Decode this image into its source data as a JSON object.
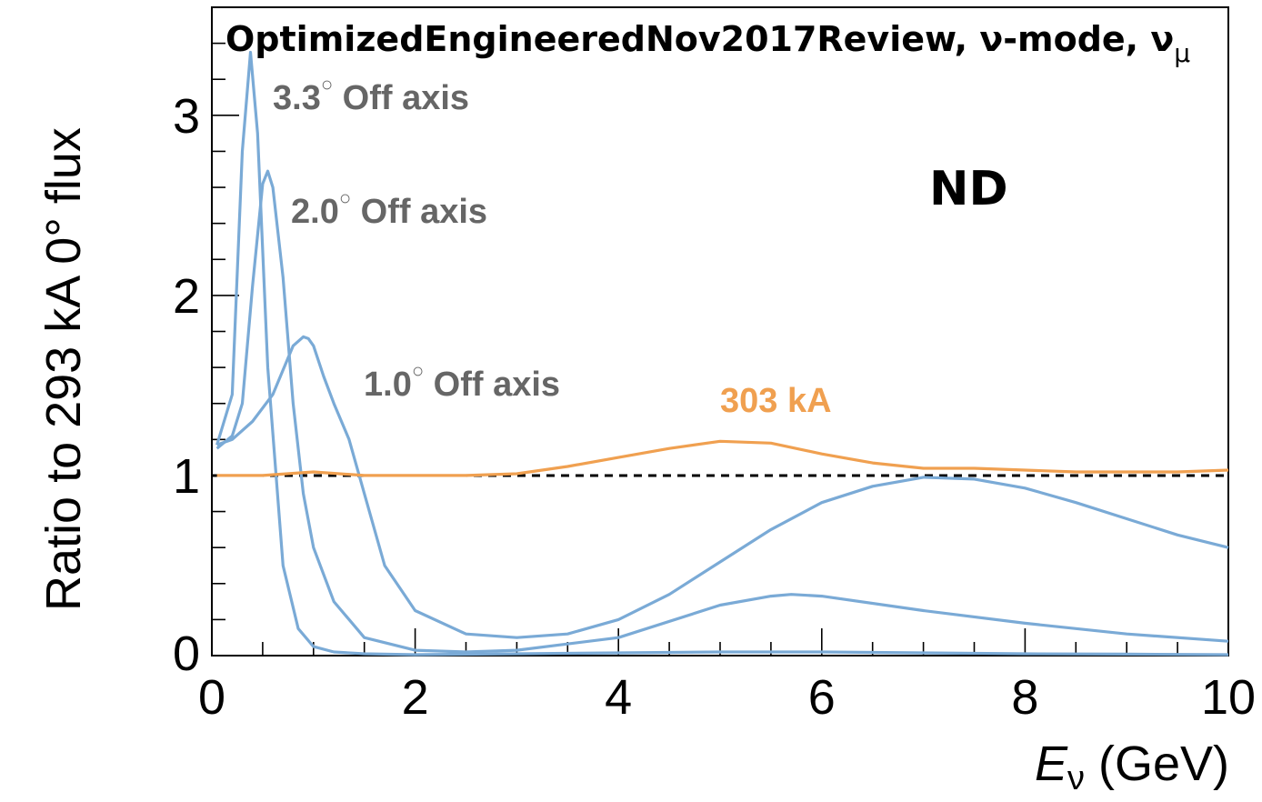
{
  "chart_data": {
    "type": "line",
    "title": "OptimizedEngineeredNov2017Review, ν-mode, ν",
    "title_subscript": "μ",
    "panel_label": "ND",
    "xlabel": "E",
    "xlabel_subscript": "ν",
    "xlabel_unit": " (GeV)",
    "ylabel": "Ratio to 293 kA 0° flux",
    "xlim": [
      0,
      10
    ],
    "ylim": [
      0,
      3.6
    ],
    "x_ticks": [
      "0",
      "2",
      "4",
      "6",
      "8",
      "10"
    ],
    "y_ticks": [
      "0",
      "1",
      "2",
      "3"
    ],
    "reference_line": 1,
    "colors": {
      "off_axis": "#7aaad6",
      "current": "#f0a050",
      "reference": "#000000"
    },
    "series": [
      {
        "key": "oa33",
        "color": "#7aaad6",
        "label": "3.3",
        "label_suffix": " Off axis",
        "x": [
          0.05,
          0.2,
          0.3,
          0.38,
          0.45,
          0.55,
          0.7,
          0.85,
          1.0,
          1.2,
          1.5,
          2.0,
          3.0,
          4.0,
          5.0,
          6.0,
          7.0,
          8.0,
          9.0,
          10.0
        ],
        "y": [
          1.17,
          1.45,
          2.8,
          3.35,
          2.9,
          1.6,
          0.5,
          0.15,
          0.05,
          0.02,
          0.01,
          0.005,
          0.01,
          0.015,
          0.02,
          0.02,
          0.015,
          0.01,
          0.008,
          0.005
        ]
      },
      {
        "key": "oa20",
        "color": "#7aaad6",
        "label": "2.0",
        "label_suffix": " Off axis",
        "x": [
          0.05,
          0.2,
          0.3,
          0.4,
          0.5,
          0.55,
          0.6,
          0.7,
          0.8,
          0.9,
          1.0,
          1.2,
          1.5,
          2.0,
          2.5,
          3.0,
          4.0,
          5.0,
          5.5,
          5.7,
          6.0,
          7.0,
          8.0,
          9.0,
          10.0
        ],
        "y": [
          1.15,
          1.22,
          1.4,
          2.05,
          2.62,
          2.69,
          2.6,
          2.1,
          1.4,
          0.9,
          0.6,
          0.3,
          0.1,
          0.03,
          0.02,
          0.03,
          0.1,
          0.28,
          0.33,
          0.34,
          0.33,
          0.25,
          0.18,
          0.12,
          0.08
        ]
      },
      {
        "key": "oa10",
        "color": "#7aaad6",
        "label": "1.0",
        "label_suffix": " Off axis",
        "x": [
          0.05,
          0.2,
          0.4,
          0.6,
          0.8,
          0.9,
          0.95,
          1.0,
          1.1,
          1.2,
          1.35,
          1.5,
          1.7,
          2.0,
          2.5,
          3.0,
          3.5,
          4.0,
          4.5,
          5.0,
          5.5,
          6.0,
          6.5,
          7.0,
          7.5,
          8.0,
          8.5,
          9.0,
          9.5,
          10.0
        ],
        "y": [
          1.17,
          1.2,
          1.3,
          1.45,
          1.72,
          1.77,
          1.76,
          1.72,
          1.55,
          1.4,
          1.2,
          0.9,
          0.5,
          0.25,
          0.12,
          0.1,
          0.12,
          0.2,
          0.34,
          0.52,
          0.7,
          0.85,
          0.94,
          0.99,
          0.98,
          0.93,
          0.85,
          0.76,
          0.67,
          0.6
        ]
      },
      {
        "key": "ka303",
        "color": "#f0a050",
        "label": "303 kA",
        "label_suffix": "",
        "x": [
          0.05,
          0.5,
          1.0,
          1.5,
          2.0,
          2.5,
          3.0,
          3.5,
          4.0,
          4.5,
          5.0,
          5.5,
          6.0,
          6.5,
          7.0,
          7.5,
          8.0,
          8.5,
          9.0,
          9.5,
          10.0
        ],
        "y": [
          1.0,
          1.0,
          1.02,
          1.0,
          1.0,
          1.0,
          1.01,
          1.05,
          1.1,
          1.15,
          1.19,
          1.18,
          1.12,
          1.07,
          1.04,
          1.04,
          1.03,
          1.02,
          1.02,
          1.02,
          1.03
        ]
      }
    ]
  }
}
